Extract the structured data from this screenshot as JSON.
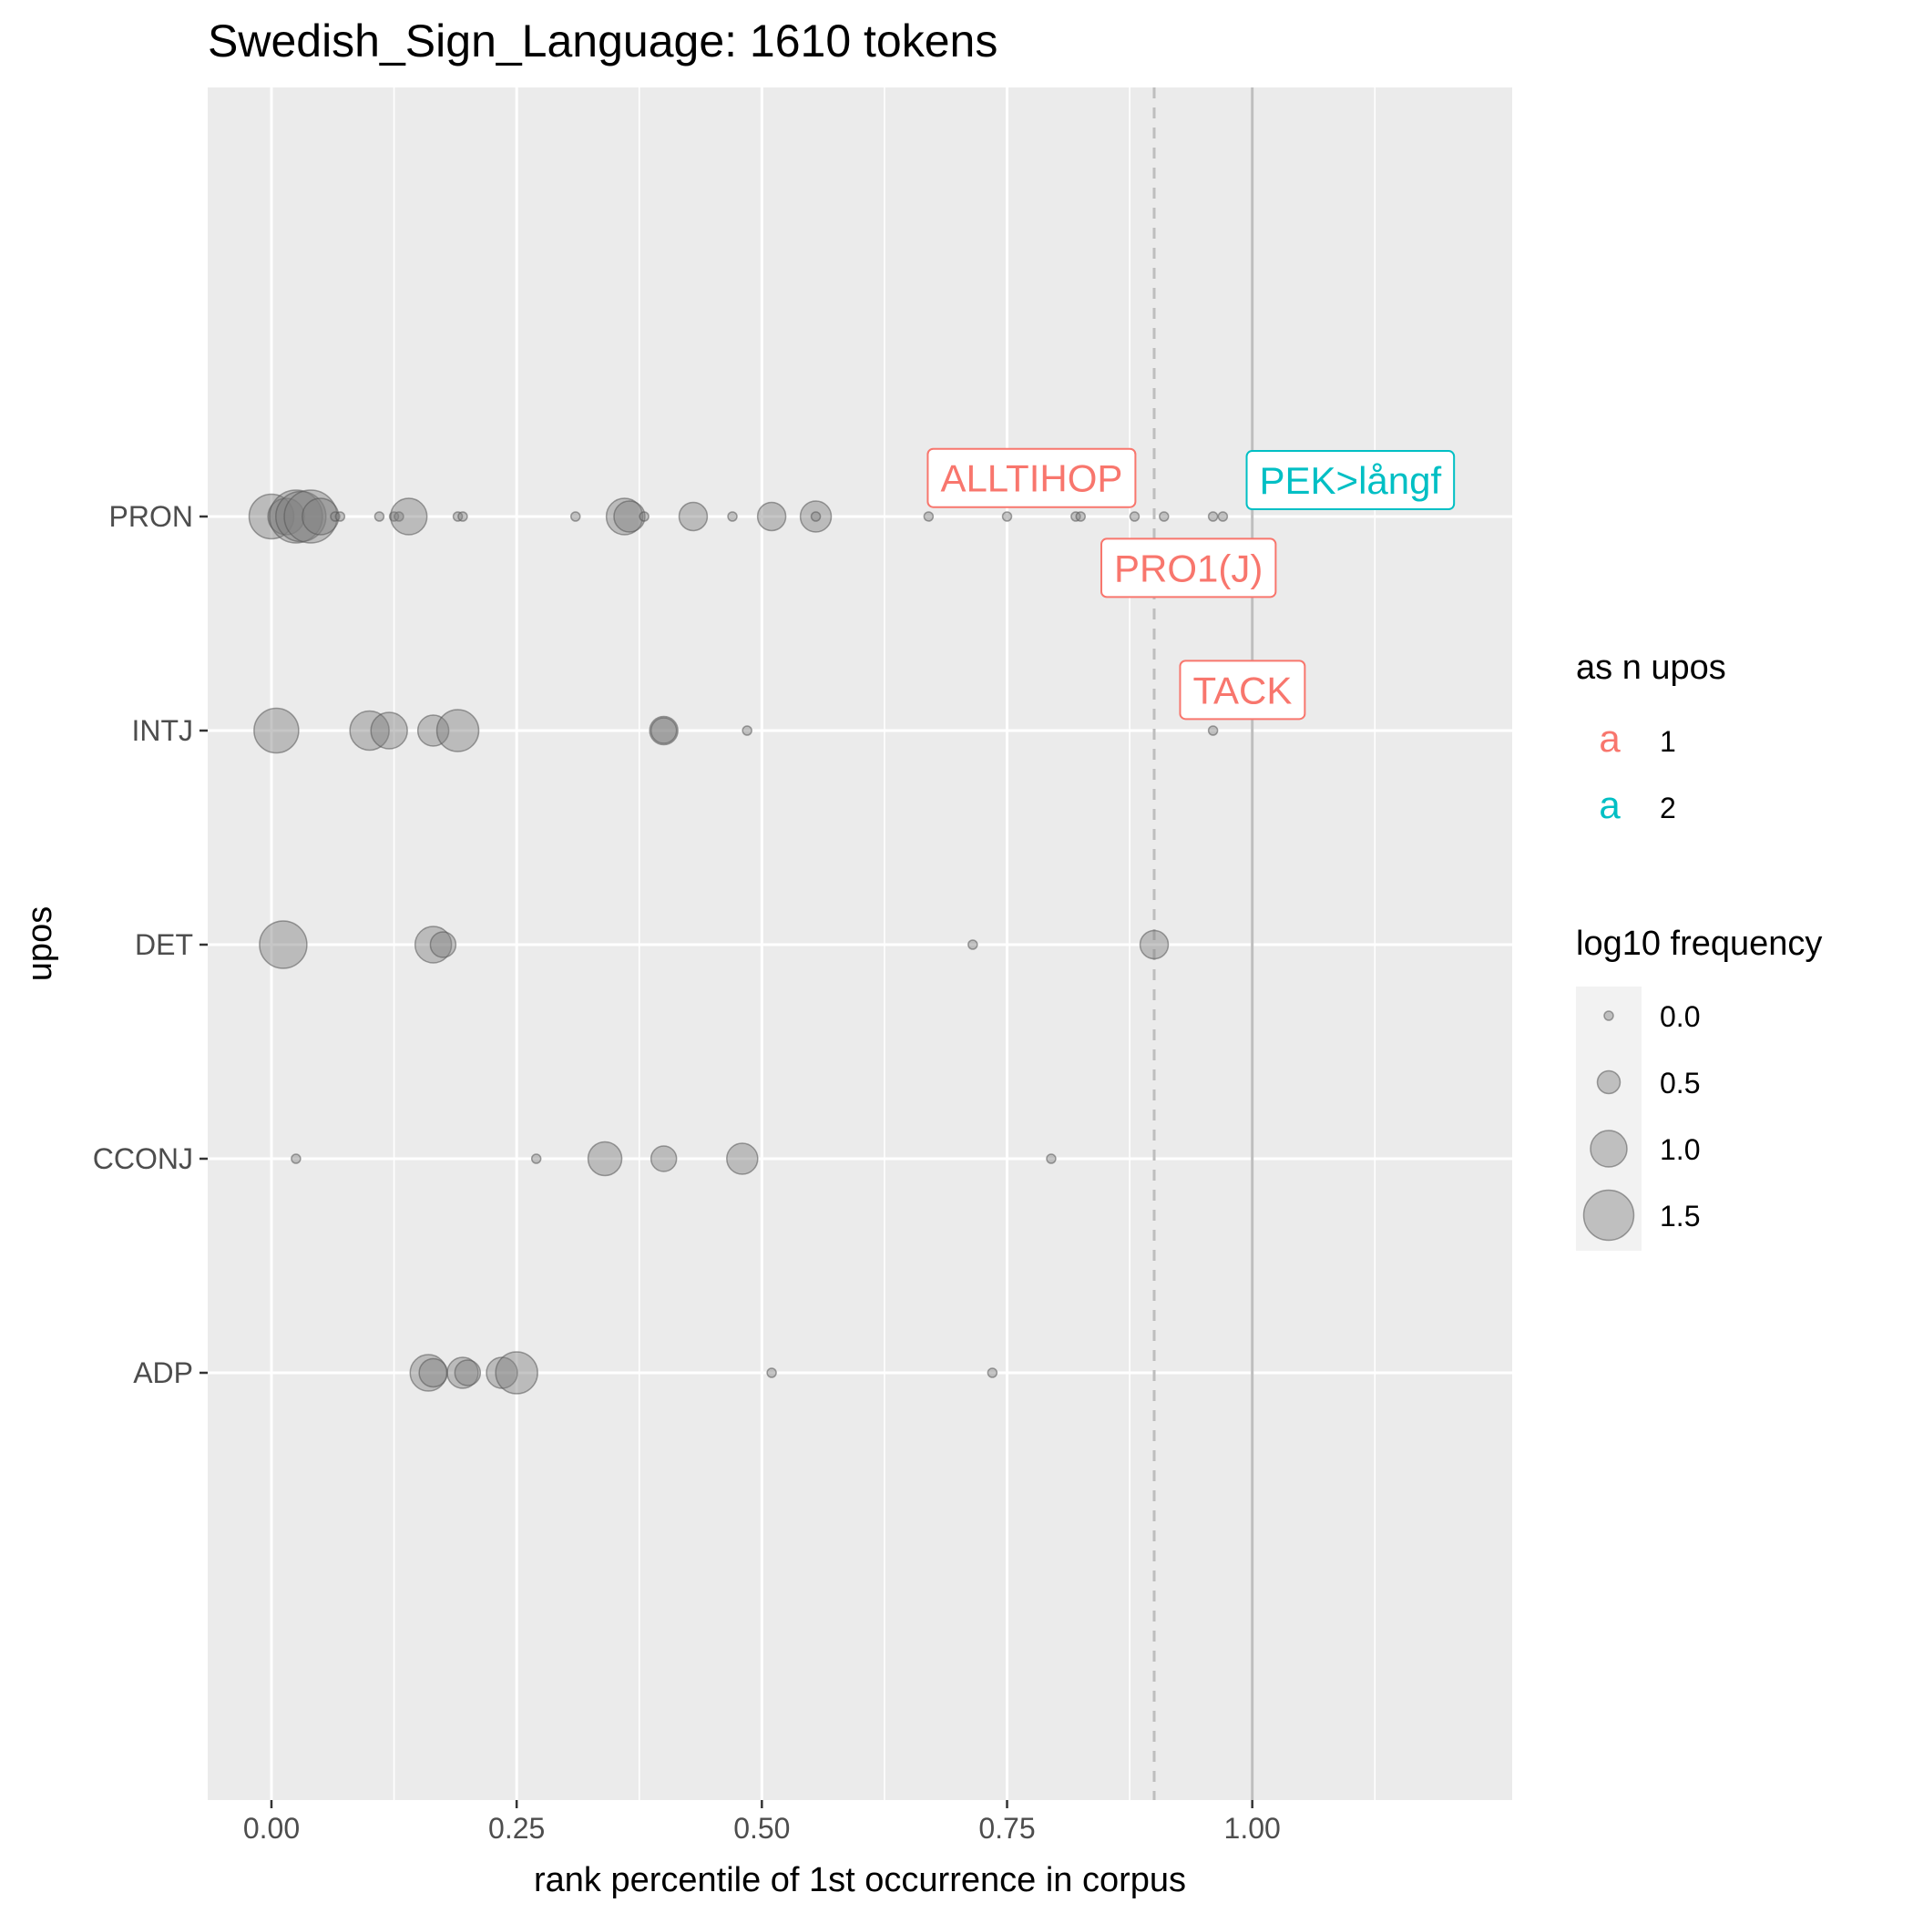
{
  "chart_data": {
    "type": "scatter",
    "title": "Swedish_Sign_Language: 1610 tokens",
    "xlabel": "rank percentile of 1st occurrence in corpus",
    "ylabel": "upos",
    "xlim": [
      -0.065,
      1.265
    ],
    "x_ticks": [
      "0.00",
      "0.25",
      "0.50",
      "0.75",
      "1.00"
    ],
    "x_tick_values": [
      0,
      0.25,
      0.5,
      0.75,
      1.0
    ],
    "categories": [
      "PRON",
      "INTJ",
      "DET",
      "CCONJ",
      "ADP"
    ],
    "grid": true,
    "vline_solid": 1.0,
    "vline_dashed": 0.9,
    "point_color": "#808080",
    "panel_background": "#ebebeb",
    "legend_position": "right",
    "legend_color": {
      "title": "as n upos",
      "entries": [
        {
          "key": "a",
          "label": "1",
          "color": "#F8766D"
        },
        {
          "key": "a",
          "label": "2",
          "color": "#00BFC4"
        }
      ]
    },
    "legend_size": {
      "title": "log10 frequency",
      "entries": [
        "0.0",
        "0.5",
        "1.0",
        "1.5"
      ],
      "values": [
        0,
        0.5,
        1.0,
        1.5
      ]
    },
    "points": [
      {
        "upos": "PRON",
        "x": 0.0,
        "freq": 1.3
      },
      {
        "upos": "PRON",
        "x": 0.015,
        "freq": 1.0
      },
      {
        "upos": "PRON",
        "x": 0.025,
        "freq": 1.6
      },
      {
        "upos": "PRON",
        "x": 0.03,
        "freq": 1.5
      },
      {
        "upos": "PRON",
        "x": 0.04,
        "freq": 1.6
      },
      {
        "upos": "PRON",
        "x": 0.05,
        "freq": 1.0
      },
      {
        "upos": "PRON",
        "x": 0.065,
        "freq": 0.0
      },
      {
        "upos": "PRON",
        "x": 0.07,
        "freq": 0.0
      },
      {
        "upos": "PRON",
        "x": 0.11,
        "freq": 0.0
      },
      {
        "upos": "PRON",
        "x": 0.125,
        "freq": 0.0
      },
      {
        "upos": "PRON",
        "x": 0.13,
        "freq": 0.0
      },
      {
        "upos": "PRON",
        "x": 0.14,
        "freq": 1.0
      },
      {
        "upos": "PRON",
        "x": 0.19,
        "freq": 0.0
      },
      {
        "upos": "PRON",
        "x": 0.195,
        "freq": 0.0
      },
      {
        "upos": "PRON",
        "x": 0.31,
        "freq": 0.0
      },
      {
        "upos": "PRON",
        "x": 0.36,
        "freq": 1.0
      },
      {
        "upos": "PRON",
        "x": 0.365,
        "freq": 0.8
      },
      {
        "upos": "PRON",
        "x": 0.38,
        "freq": 0.0
      },
      {
        "upos": "PRON",
        "x": 0.43,
        "freq": 0.7
      },
      {
        "upos": "PRON",
        "x": 0.47,
        "freq": 0.0
      },
      {
        "upos": "PRON",
        "x": 0.51,
        "freq": 0.7
      },
      {
        "upos": "PRON",
        "x": 0.555,
        "freq": 0.8
      },
      {
        "upos": "PRON",
        "x": 0.555,
        "freq": 0.0
      },
      {
        "upos": "PRON",
        "x": 0.67,
        "freq": 0.0
      },
      {
        "upos": "PRON",
        "x": 0.75,
        "freq": 0.0
      },
      {
        "upos": "PRON",
        "x": 0.82,
        "freq": 0.0
      },
      {
        "upos": "PRON",
        "x": 0.825,
        "freq": 0.0
      },
      {
        "upos": "PRON",
        "x": 0.88,
        "freq": 0.0
      },
      {
        "upos": "PRON",
        "x": 0.91,
        "freq": 0.0
      },
      {
        "upos": "PRON",
        "x": 0.96,
        "freq": 0.0
      },
      {
        "upos": "PRON",
        "x": 0.97,
        "freq": 0.0
      },
      {
        "upos": "INTJ",
        "x": 0.005,
        "freq": 1.3
      },
      {
        "upos": "INTJ",
        "x": 0.1,
        "freq": 1.1
      },
      {
        "upos": "INTJ",
        "x": 0.12,
        "freq": 1.0
      },
      {
        "upos": "INTJ",
        "x": 0.165,
        "freq": 0.8
      },
      {
        "upos": "INTJ",
        "x": 0.19,
        "freq": 1.2
      },
      {
        "upos": "INTJ",
        "x": 0.4,
        "freq": 0.7
      },
      {
        "upos": "INTJ",
        "x": 0.4,
        "freq": 0.6
      },
      {
        "upos": "INTJ",
        "x": 0.485,
        "freq": 0.0
      },
      {
        "upos": "INTJ",
        "x": 0.96,
        "freq": 0.0
      },
      {
        "upos": "DET",
        "x": 0.012,
        "freq": 1.4
      },
      {
        "upos": "DET",
        "x": 0.165,
        "freq": 1.0
      },
      {
        "upos": "DET",
        "x": 0.175,
        "freq": 0.6
      },
      {
        "upos": "DET",
        "x": 0.715,
        "freq": 0.0
      },
      {
        "upos": "DET",
        "x": 0.9,
        "freq": 0.7
      },
      {
        "upos": "CCONJ",
        "x": 0.025,
        "freq": 0.0
      },
      {
        "upos": "CCONJ",
        "x": 0.27,
        "freq": 0.0
      },
      {
        "upos": "CCONJ",
        "x": 0.34,
        "freq": 0.9
      },
      {
        "upos": "CCONJ",
        "x": 0.4,
        "freq": 0.6
      },
      {
        "upos": "CCONJ",
        "x": 0.48,
        "freq": 0.8
      },
      {
        "upos": "CCONJ",
        "x": 0.795,
        "freq": 0.0
      },
      {
        "upos": "ADP",
        "x": 0.16,
        "freq": 1.0
      },
      {
        "upos": "ADP",
        "x": 0.165,
        "freq": 0.7
      },
      {
        "upos": "ADP",
        "x": 0.195,
        "freq": 0.8
      },
      {
        "upos": "ADP",
        "x": 0.2,
        "freq": 0.6
      },
      {
        "upos": "ADP",
        "x": 0.235,
        "freq": 0.8
      },
      {
        "upos": "ADP",
        "x": 0.25,
        "freq": 1.2
      },
      {
        "upos": "ADP",
        "x": 0.51,
        "freq": 0.0
      },
      {
        "upos": "ADP",
        "x": 0.735,
        "freq": 0.0
      }
    ],
    "annotations": [
      {
        "text": "ALLTIHOP",
        "x": 0.775,
        "y_cat": "PRON",
        "dy": -0.18,
        "group": "1"
      },
      {
        "text": "PEK>långf",
        "x": 1.1,
        "y_cat": "PRON",
        "dy": -0.17,
        "group": "2"
      },
      {
        "text": "PRO1(J)",
        "x": 0.935,
        "y_cat": "PRON",
        "dy": 0.24,
        "group": "1"
      },
      {
        "text": "TACK",
        "x": 0.99,
        "y_cat": "INTJ",
        "dy": -0.19,
        "group": "1"
      }
    ]
  }
}
